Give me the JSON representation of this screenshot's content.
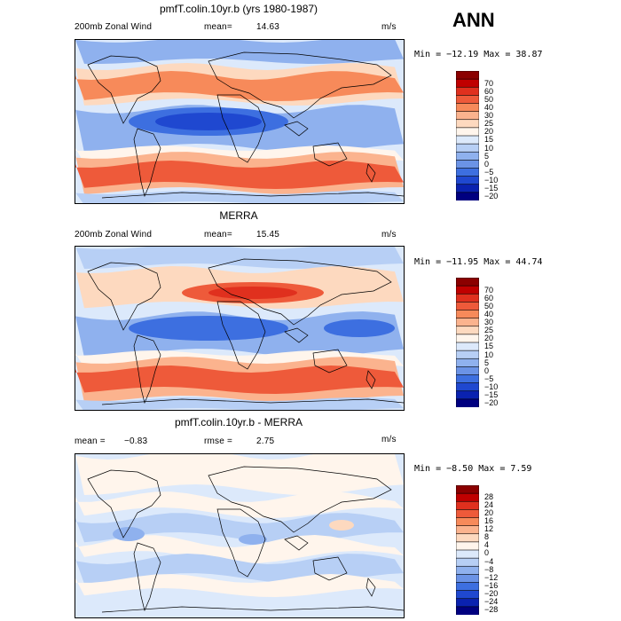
{
  "season": "ANN",
  "panels": [
    {
      "title": "pmfT.colin.10yr.b (yrs 1980-1987)",
      "left_label": "200mb Zonal Wind",
      "stat_label": "mean=",
      "stat_value": "14.63",
      "units": "m/s",
      "minmax": "Min = −12.19 Max =   38.87",
      "colorbar_labels": [
        "70",
        "60",
        "50",
        "40",
        "30",
        "25",
        "20",
        "15",
        "10",
        "5",
        "0",
        "−5",
        "−10",
        "−15",
        "−20"
      ],
      "colors": [
        "#8b0000",
        "#c00000",
        "#e0301e",
        "#ee5a3a",
        "#f78a5a",
        "#fbb38e",
        "#fdd9bf",
        "#fff5ec",
        "#dce9fb",
        "#b7cff5",
        "#8fb1ee",
        "#6b93e6",
        "#3d6fe0",
        "#1f48d0",
        "#0a22b0",
        "#000080"
      ]
    },
    {
      "title": "MERRA",
      "left_label": "200mb Zonal Wind",
      "stat_label": "mean=",
      "stat_value": "15.45",
      "units": "m/s",
      "minmax": "Min = −11.95 Max =   44.74",
      "colorbar_labels": [
        "70",
        "60",
        "50",
        "40",
        "30",
        "25",
        "20",
        "15",
        "10",
        "5",
        "0",
        "−5",
        "−10",
        "−15",
        "−20"
      ],
      "colors": [
        "#8b0000",
        "#c00000",
        "#e0301e",
        "#ee5a3a",
        "#f78a5a",
        "#fbb38e",
        "#fdd9bf",
        "#fff5ec",
        "#dce9fb",
        "#b7cff5",
        "#8fb1ee",
        "#6b93e6",
        "#3d6fe0",
        "#1f48d0",
        "#0a22b0",
        "#000080"
      ]
    },
    {
      "title": "pmfT.colin.10yr.b - MERRA",
      "left_label": "mean =",
      "stat_label": "rmse =",
      "left_value": "−0.83",
      "stat_value": "2.75",
      "units": "m/s",
      "minmax": "Min = −8.50 Max =    7.59",
      "colorbar_labels": [
        "28",
        "24",
        "20",
        "16",
        "12",
        "8",
        "4",
        "0",
        "−4",
        "−8",
        "−12",
        "−16",
        "−20",
        "−24",
        "−28"
      ],
      "colors": [
        "#8b0000",
        "#c00000",
        "#e0301e",
        "#ee5a3a",
        "#f78a5a",
        "#fbb38e",
        "#fdd9bf",
        "#fff5ec",
        "#dce9fb",
        "#b7cff5",
        "#8fb1ee",
        "#6b93e6",
        "#3d6fe0",
        "#1f48d0",
        "#0a22b0",
        "#000080"
      ]
    }
  ]
}
